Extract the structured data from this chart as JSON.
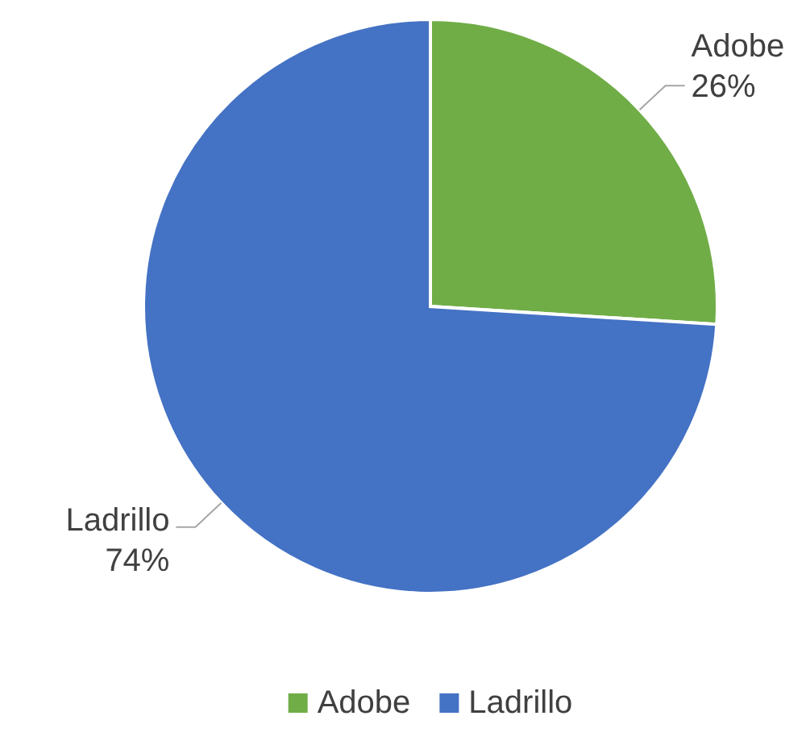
{
  "chart_data": {
    "type": "pie",
    "categories": [
      "Adobe",
      "Ladrillo"
    ],
    "values": [
      26,
      74
    ],
    "colors": [
      "#70ad47",
      "#4472c4"
    ],
    "value_labels": [
      "26%",
      "74%"
    ],
    "legend": "bottom"
  }
}
